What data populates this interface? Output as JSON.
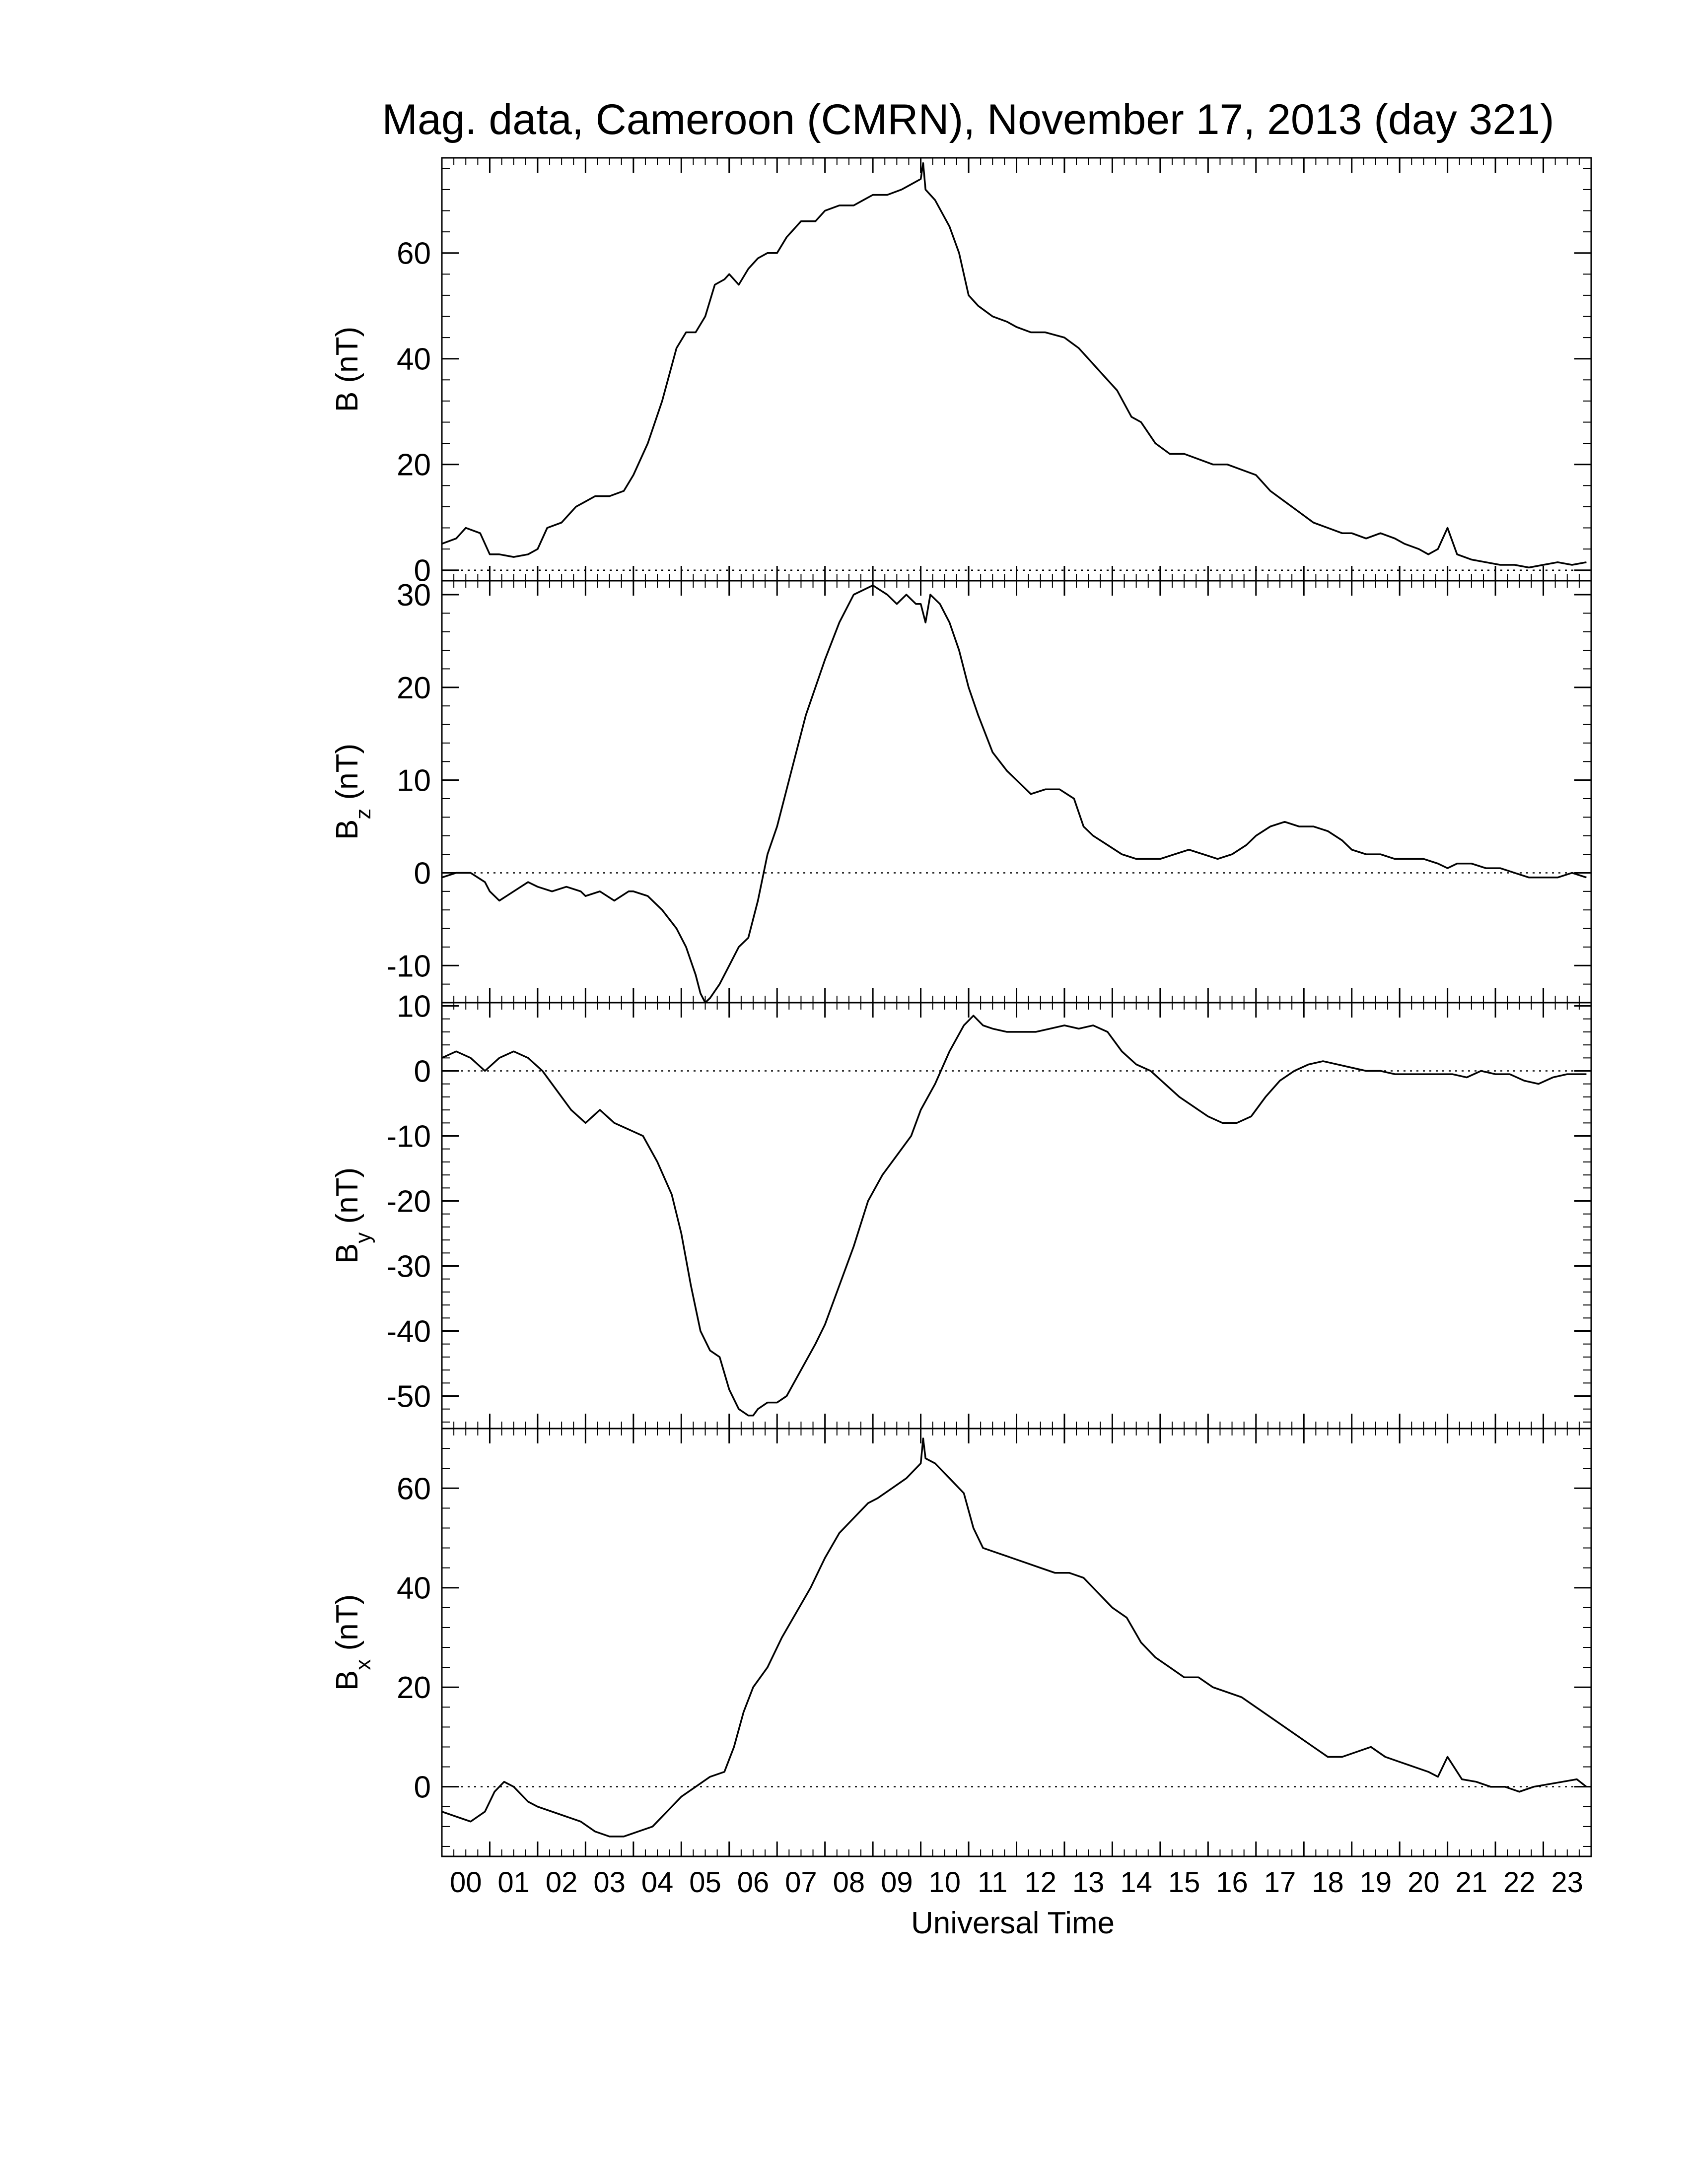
{
  "figure": {
    "title": "Mag. data, Cameroon (CMRN), November 17, 2013 (day 321)",
    "xlabel": "Universal Time"
  },
  "chart_data": [
    {
      "type": "line",
      "panel": "B",
      "ylabel_main": "B",
      "ylabel_sub": "",
      "ylabel_unit": "(nT)",
      "xlim": [
        0,
        24
      ],
      "ylim": [
        -2,
        78
      ],
      "yticks": [
        0,
        20,
        40,
        60
      ],
      "zero_line": true,
      "x": [
        0,
        0.3,
        0.5,
        0.8,
        1.0,
        1.2,
        1.5,
        1.8,
        2.0,
        2.2,
        2.5,
        2.8,
        3.0,
        3.2,
        3.5,
        3.8,
        4.0,
        4.3,
        4.6,
        4.9,
        5.1,
        5.3,
        5.5,
        5.7,
        5.9,
        6.0,
        6.2,
        6.4,
        6.6,
        6.8,
        7.0,
        7.2,
        7.5,
        7.8,
        8.0,
        8.3,
        8.6,
        8.8,
        9.0,
        9.3,
        9.6,
        9.8,
        10.0,
        10.05,
        10.1,
        10.3,
        10.6,
        10.8,
        11.0,
        11.2,
        11.5,
        11.8,
        12.0,
        12.3,
        12.6,
        13.0,
        13.3,
        13.5,
        13.8,
        14.1,
        14.4,
        14.6,
        14.9,
        15.2,
        15.5,
        15.8,
        16.1,
        16.4,
        16.7,
        17.0,
        17.3,
        17.6,
        17.9,
        18.2,
        18.5,
        18.8,
        19.0,
        19.3,
        19.6,
        19.9,
        20.1,
        20.4,
        20.6,
        20.8,
        21.0,
        21.2,
        21.5,
        21.8,
        22.1,
        22.4,
        22.7,
        23.0,
        23.3,
        23.6,
        23.9
      ],
      "values": [
        5,
        6,
        8,
        7,
        3,
        3,
        2.5,
        3,
        4,
        8,
        9,
        12,
        13,
        14,
        14,
        15,
        18,
        24,
        32,
        42,
        45,
        45,
        48,
        54,
        55,
        56,
        54,
        57,
        59,
        60,
        60,
        63,
        66,
        66,
        68,
        69,
        69,
        70,
        71,
        71,
        72,
        73,
        74,
        77,
        72,
        70,
        65,
        60,
        52,
        50,
        48,
        47,
        46,
        45,
        45,
        44,
        42,
        40,
        37,
        34,
        29,
        28,
        24,
        22,
        22,
        21,
        20,
        20,
        19,
        18,
        15,
        13,
        11,
        9,
        8,
        7,
        7,
        6,
        7,
        6,
        5,
        4,
        3,
        4,
        8,
        3,
        2,
        1.5,
        1,
        1,
        0.5,
        1,
        1.5,
        1,
        1.5
      ]
    },
    {
      "type": "line",
      "panel": "Bz",
      "ylabel_main": "B",
      "ylabel_sub": "z",
      "ylabel_unit": "(nT)",
      "xlim": [
        0,
        24
      ],
      "ylim": [
        -14,
        31.5
      ],
      "yticks": [
        -10,
        0,
        10,
        20,
        30
      ],
      "zero_line": true,
      "x": [
        0,
        0.3,
        0.6,
        0.9,
        1.0,
        1.2,
        1.5,
        1.8,
        2.0,
        2.3,
        2.6,
        2.9,
        3.0,
        3.3,
        3.6,
        3.9,
        4.0,
        4.3,
        4.6,
        4.9,
        5.1,
        5.3,
        5.4,
        5.5,
        5.6,
        5.8,
        6.0,
        6.2,
        6.4,
        6.6,
        6.8,
        7.0,
        7.3,
        7.6,
        8.0,
        8.3,
        8.6,
        9.0,
        9.3,
        9.5,
        9.7,
        9.9,
        10.0,
        10.1,
        10.2,
        10.4,
        10.6,
        10.8,
        11.0,
        11.2,
        11.5,
        11.8,
        12.0,
        12.3,
        12.6,
        12.9,
        13.2,
        13.4,
        13.6,
        13.9,
        14.2,
        14.5,
        14.8,
        15.0,
        15.3,
        15.6,
        15.9,
        16.2,
        16.5,
        16.8,
        17.0,
        17.3,
        17.6,
        17.9,
        18.2,
        18.5,
        18.8,
        19.0,
        19.3,
        19.6,
        19.9,
        20.2,
        20.5,
        20.8,
        21.0,
        21.2,
        21.5,
        21.8,
        22.1,
        22.4,
        22.7,
        23.0,
        23.3,
        23.6,
        23.9
      ],
      "values": [
        -0.5,
        0,
        0,
        -1,
        -2,
        -3,
        -2,
        -1,
        -1.5,
        -2,
        -1.5,
        -2,
        -2.5,
        -2,
        -3,
        -2,
        -2,
        -2.5,
        -4,
        -6,
        -8,
        -11,
        -13,
        -14,
        -13.5,
        -12,
        -10,
        -8,
        -7,
        -3,
        2,
        5,
        11,
        17,
        23,
        27,
        30,
        31,
        30,
        29,
        30,
        29,
        29,
        27,
        30,
        29,
        27,
        24,
        20,
        17,
        13,
        11,
        10,
        8.5,
        9,
        9,
        8,
        5,
        4,
        3,
        2,
        1.5,
        1.5,
        1.5,
        2,
        2.5,
        2,
        1.5,
        2,
        3,
        4,
        5,
        5.5,
        5,
        5,
        4.5,
        3.5,
        2.5,
        2,
        2,
        1.5,
        1.5,
        1.5,
        1,
        0.5,
        1,
        1,
        0.5,
        0.5,
        0,
        -0.5,
        -0.5,
        -0.5,
        0,
        -0.5
      ]
    },
    {
      "type": "line",
      "panel": "By",
      "ylabel_main": "B",
      "ylabel_sub": "y",
      "ylabel_unit": "(nT)",
      "xlim": [
        0,
        24
      ],
      "ylim": [
        -55,
        10.5
      ],
      "yticks": [
        -50,
        -40,
        -30,
        -20,
        -10,
        0,
        10
      ],
      "zero_line": true,
      "x": [
        0,
        0.3,
        0.6,
        0.9,
        1.2,
        1.5,
        1.8,
        2.1,
        2.4,
        2.7,
        3.0,
        3.3,
        3.6,
        3.9,
        4.2,
        4.5,
        4.8,
        5.0,
        5.2,
        5.4,
        5.6,
        5.8,
        6.0,
        6.2,
        6.4,
        6.5,
        6.6,
        6.8,
        7.0,
        7.2,
        7.5,
        7.8,
        8.0,
        8.3,
        8.6,
        8.9,
        9.2,
        9.5,
        9.8,
        10.0,
        10.3,
        10.6,
        10.9,
        11.1,
        11.3,
        11.5,
        11.8,
        12.1,
        12.4,
        12.7,
        13.0,
        13.3,
        13.6,
        13.9,
        14.2,
        14.5,
        14.8,
        15.1,
        15.4,
        15.7,
        16.0,
        16.3,
        16.6,
        16.9,
        17.2,
        17.5,
        17.8,
        18.1,
        18.4,
        18.7,
        19.0,
        19.3,
        19.6,
        19.9,
        20.2,
        20.5,
        20.8,
        21.1,
        21.4,
        21.7,
        22.0,
        22.3,
        22.6,
        22.9,
        23.2,
        23.5,
        23.9
      ],
      "values": [
        2,
        3,
        2,
        0,
        2,
        3,
        2,
        0,
        -3,
        -6,
        -8,
        -6,
        -8,
        -9,
        -10,
        -14,
        -19,
        -25,
        -33,
        -40,
        -43,
        -44,
        -49,
        -52,
        -53,
        -53,
        -52,
        -51,
        -51,
        -50,
        -46,
        -42,
        -39,
        -33,
        -27,
        -20,
        -16,
        -13,
        -10,
        -6,
        -2,
        3,
        7,
        8.5,
        7,
        6.5,
        6,
        6,
        6,
        6.5,
        7,
        6.5,
        7,
        6,
        3,
        1,
        0,
        -2,
        -4,
        -5.5,
        -7,
        -8,
        -8,
        -7,
        -4,
        -1.5,
        0,
        1,
        1.5,
        1,
        0.5,
        0,
        0,
        -0.5,
        -0.5,
        -0.5,
        -0.5,
        -0.5,
        -1,
        0,
        -0.5,
        -0.5,
        -1.5,
        -2,
        -1,
        -0.5,
        -0.5
      ]
    },
    {
      "type": "line",
      "panel": "Bx",
      "ylabel_main": "B",
      "ylabel_sub": "x",
      "ylabel_unit": "(nT)",
      "xlim": [
        0,
        24
      ],
      "ylim": [
        -14,
        72
      ],
      "yticks": [
        0,
        20,
        40,
        60
      ],
      "zero_line": true,
      "x": [
        0,
        0.3,
        0.6,
        0.9,
        1.1,
        1.3,
        1.5,
        1.8,
        2.0,
        2.3,
        2.6,
        2.9,
        3.2,
        3.5,
        3.8,
        4.1,
        4.4,
        4.7,
        5.0,
        5.3,
        5.6,
        5.9,
        6.1,
        6.3,
        6.5,
        6.8,
        7.1,
        7.4,
        7.7,
        8.0,
        8.3,
        8.6,
        8.9,
        9.1,
        9.4,
        9.7,
        9.9,
        10.0,
        10.05,
        10.1,
        10.3,
        10.6,
        10.9,
        11.1,
        11.3,
        11.6,
        11.9,
        12.2,
        12.5,
        12.8,
        13.1,
        13.4,
        13.7,
        14.0,
        14.3,
        14.6,
        14.9,
        15.2,
        15.5,
        15.8,
        16.1,
        16.4,
        16.7,
        17.0,
        17.3,
        17.6,
        17.9,
        18.2,
        18.5,
        18.8,
        19.1,
        19.4,
        19.7,
        20.0,
        20.3,
        20.6,
        20.8,
        21.0,
        21.3,
        21.6,
        21.9,
        22.2,
        22.5,
        22.8,
        23.1,
        23.4,
        23.7,
        23.9
      ],
      "values": [
        -5,
        -6,
        -7,
        -5,
        -1,
        1,
        0,
        -3,
        -4,
        -5,
        -6,
        -7,
        -9,
        -10,
        -10,
        -9,
        -8,
        -5,
        -2,
        0,
        2,
        3,
        8,
        15,
        20,
        24,
        30,
        35,
        40,
        46,
        51,
        54,
        57,
        58,
        60,
        62,
        64,
        65,
        70,
        66,
        65,
        62,
        59,
        52,
        48,
        47,
        46,
        45,
        44,
        43,
        43,
        42,
        39,
        36,
        34,
        29,
        26,
        24,
        22,
        22,
        20,
        19,
        18,
        16,
        14,
        12,
        10,
        8,
        6,
        6,
        7,
        8,
        6,
        5,
        4,
        3,
        2,
        6,
        1.5,
        1,
        0,
        0,
        -1,
        0,
        0.5,
        1,
        1.5,
        0
      ]
    }
  ],
  "x_ticks": [
    "00",
    "01",
    "02",
    "03",
    "04",
    "05",
    "06",
    "07",
    "08",
    "09",
    "10",
    "11",
    "12",
    "13",
    "14",
    "15",
    "16",
    "17",
    "18",
    "19",
    "20",
    "21",
    "22",
    "23"
  ]
}
